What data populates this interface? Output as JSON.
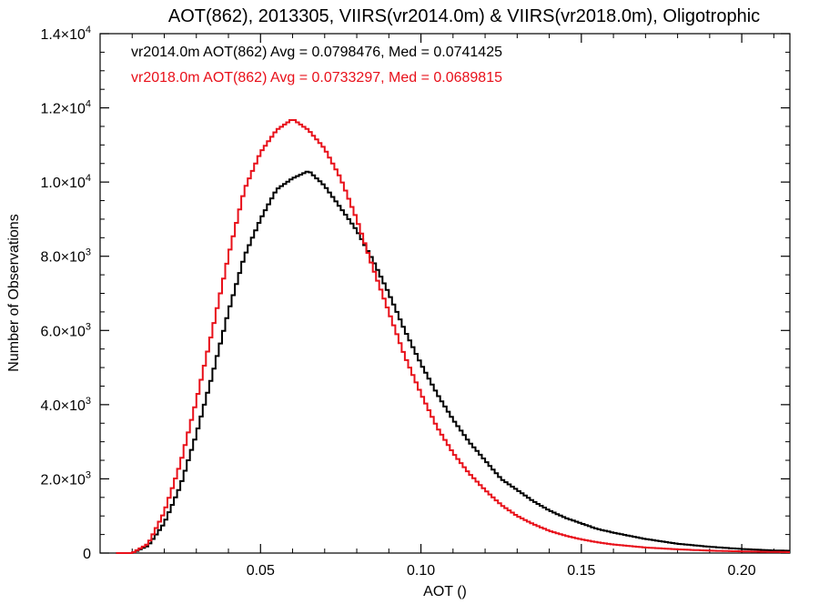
{
  "chart_data": {
    "type": "line",
    "title": "AOT(862), 2013305, VIIRS(vr2014.0m) & VIIRS(vr2018.0m), Oligotrophic",
    "xlabel": "AOT ()",
    "ylabel": "Number of Observations",
    "xlim": [
      0.0,
      0.215
    ],
    "ylim": [
      0,
      14000
    ],
    "grid": false,
    "legend_position": "top-left",
    "x_ticks": [
      {
        "value": 0.05,
        "label": "0.05"
      },
      {
        "value": 0.1,
        "label": "0.10"
      },
      {
        "value": 0.15,
        "label": "0.15"
      },
      {
        "value": 0.2,
        "label": "0.20"
      }
    ],
    "y_ticks": [
      {
        "value": 0,
        "mant": "0",
        "exp": ""
      },
      {
        "value": 2000,
        "mant": "2.0×10",
        "exp": "3"
      },
      {
        "value": 4000,
        "mant": "4.0×10",
        "exp": "3"
      },
      {
        "value": 6000,
        "mant": "6.0×10",
        "exp": "3"
      },
      {
        "value": 8000,
        "mant": "8.0×10",
        "exp": "3"
      },
      {
        "value": 10000,
        "mant": "1.0×10",
        "exp": "4"
      },
      {
        "value": 12000,
        "mant": "1.2×10",
        "exp": "4"
      },
      {
        "value": 14000,
        "mant": "1.4×10",
        "exp": "4"
      }
    ],
    "annotations": [
      {
        "text": "vr2014.0m AOT(862) Avg = 0.0798476, Med = 0.0741425",
        "color": "#000000"
      },
      {
        "text": "vr2018.0m AOT(862) Avg = 0.0733297, Med = 0.0689815",
        "color": "#e8101a"
      }
    ],
    "series": [
      {
        "color": "#000000",
        "x": [
          0.005,
          0.01,
          0.015,
          0.02,
          0.025,
          0.03,
          0.035,
          0.04,
          0.045,
          0.05,
          0.055,
          0.06,
          0.065,
          0.07,
          0.075,
          0.08,
          0.085,
          0.09,
          0.095,
          0.1,
          0.105,
          0.11,
          0.115,
          0.12,
          0.125,
          0.13,
          0.135,
          0.14,
          0.145,
          0.15,
          0.155,
          0.16,
          0.17,
          0.18,
          0.19,
          0.2,
          0.21,
          0.215
        ],
        "y": [
          0,
          0,
          200,
          800,
          1800,
          3200,
          4800,
          6500,
          8000,
          9000,
          9800,
          10100,
          10300,
          9900,
          9300,
          8700,
          7900,
          7000,
          6000,
          5100,
          4300,
          3600,
          3000,
          2500,
          2000,
          1700,
          1400,
          1150,
          950,
          800,
          650,
          550,
          380,
          250,
          170,
          110,
          70,
          60
        ]
      },
      {
        "color": "#e8101a",
        "x": [
          0.005,
          0.01,
          0.015,
          0.02,
          0.025,
          0.03,
          0.035,
          0.04,
          0.045,
          0.05,
          0.055,
          0.06,
          0.065,
          0.07,
          0.075,
          0.08,
          0.085,
          0.09,
          0.095,
          0.1,
          0.105,
          0.11,
          0.115,
          0.12,
          0.125,
          0.13,
          0.135,
          0.14,
          0.145,
          0.15,
          0.155,
          0.16,
          0.17,
          0.18,
          0.19,
          0.2,
          0.21,
          0.215
        ],
        "y": [
          0,
          0,
          250,
          1100,
          2400,
          4100,
          6000,
          8000,
          9800,
          10800,
          11400,
          11700,
          11400,
          10900,
          10100,
          9000,
          7700,
          6500,
          5300,
          4300,
          3400,
          2700,
          2150,
          1700,
          1300,
          1000,
          780,
          600,
          470,
          370,
          290,
          230,
          150,
          100,
          65,
          45,
          30,
          25
        ]
      }
    ]
  }
}
